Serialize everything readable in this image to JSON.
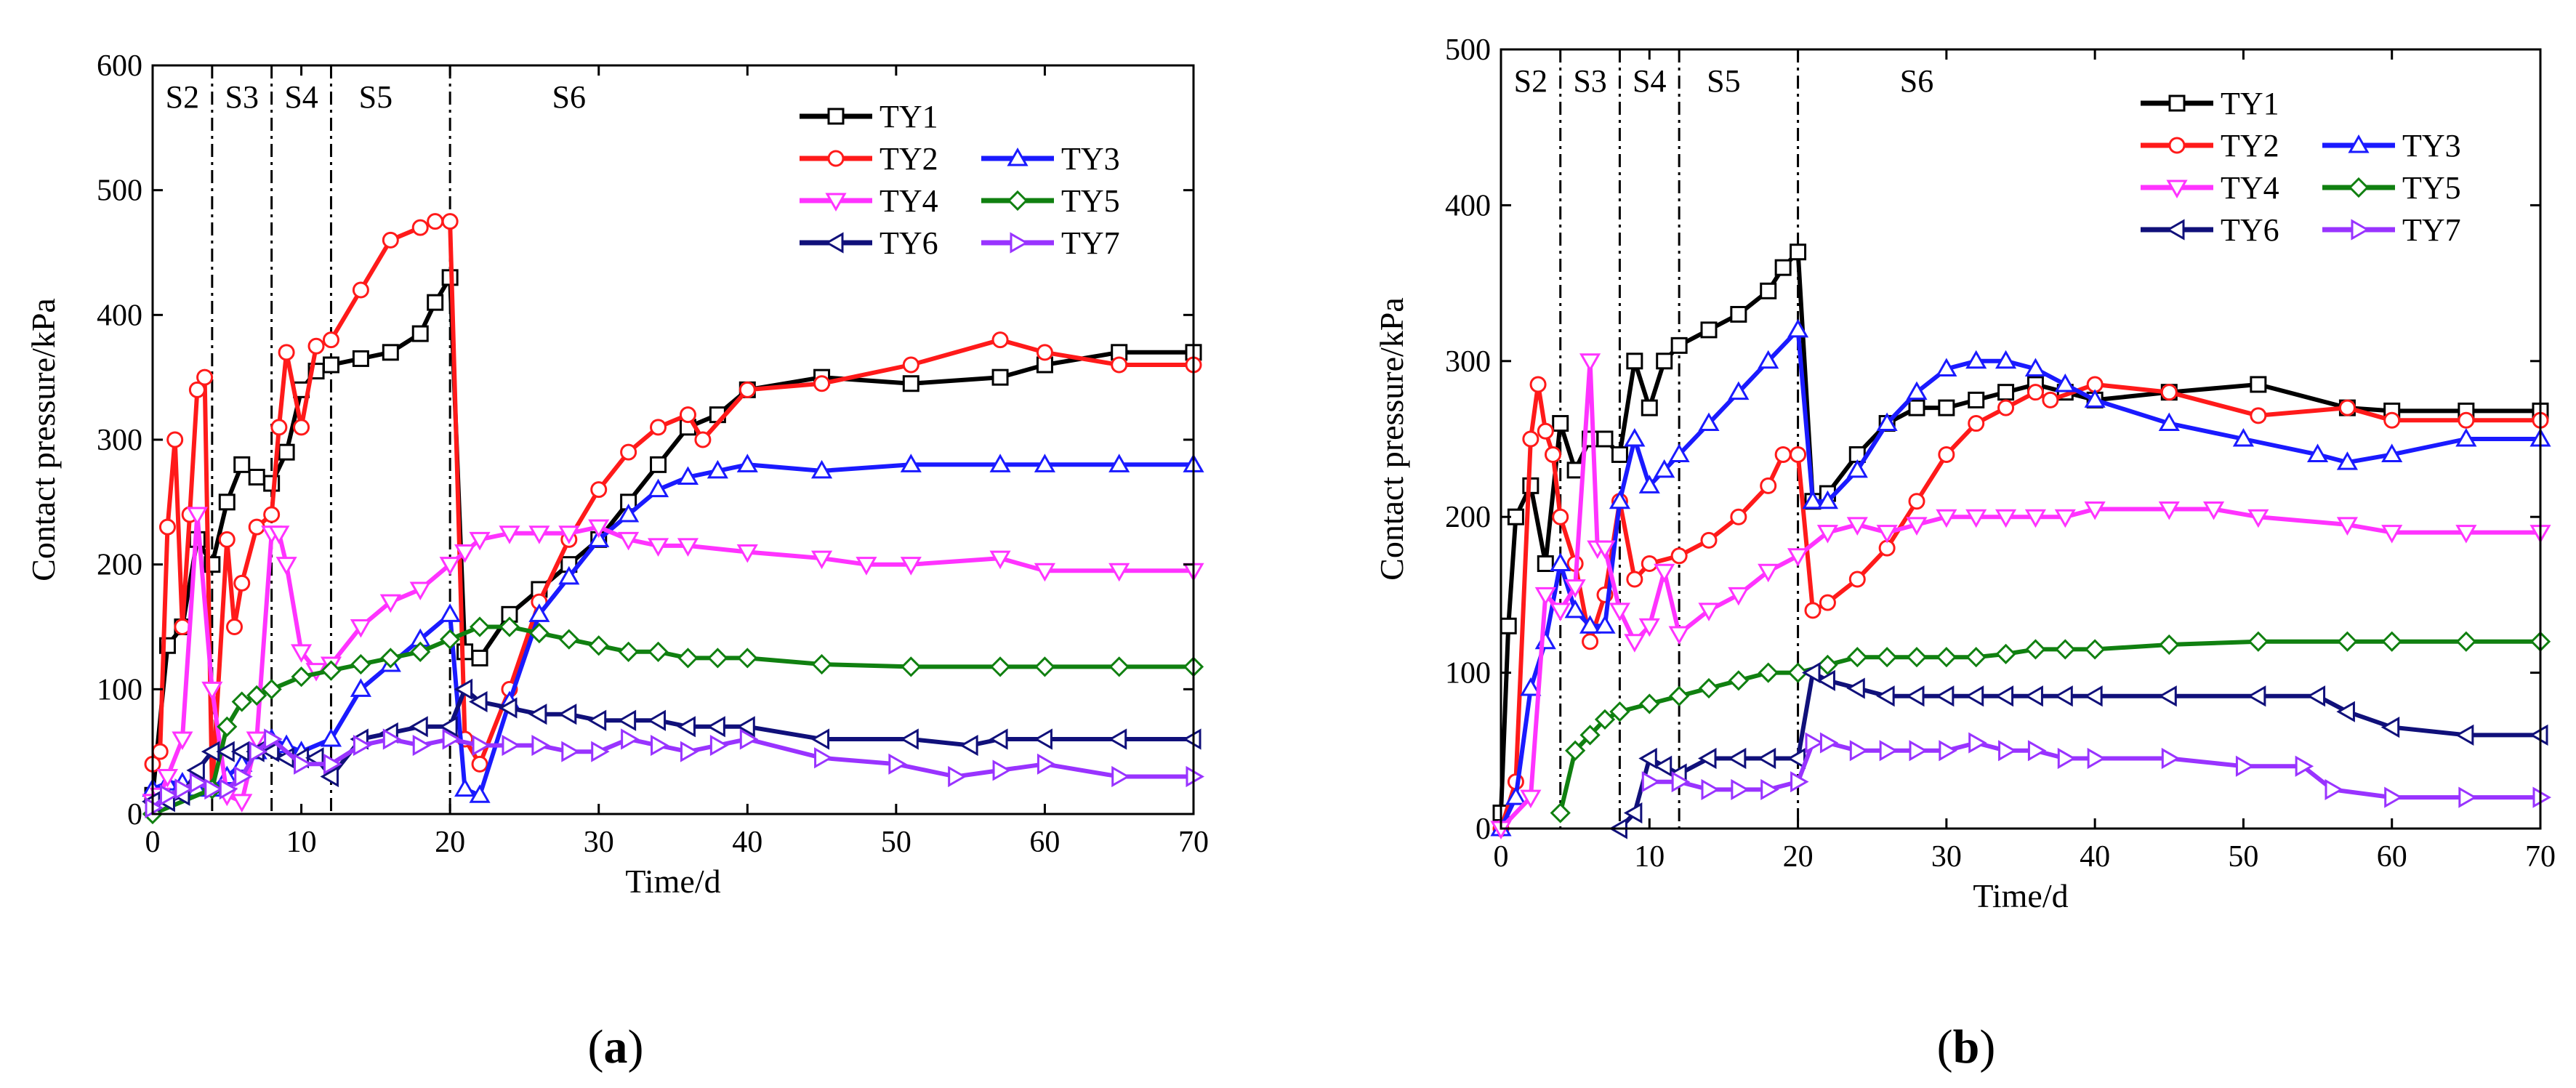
{
  "figure": {
    "panel_a_caption_open": "(",
    "panel_a_caption_letter": "a",
    "panel_a_caption_close": ")",
    "panel_b_caption_open": "(",
    "panel_b_caption_letter": "b",
    "panel_b_caption_close": ")"
  },
  "series_styles": [
    {
      "name": "TY1",
      "color": "#000000",
      "marker": "square"
    },
    {
      "name": "TY2",
      "color": "#ff1a1a",
      "marker": "circle"
    },
    {
      "name": "TY3",
      "color": "#1a1aff",
      "marker": "triangle-up"
    },
    {
      "name": "TY4",
      "color": "#ff33ff",
      "marker": "triangle-down"
    },
    {
      "name": "TY5",
      "color": "#108010",
      "marker": "diamond"
    },
    {
      "name": "TY6",
      "color": "#10107a",
      "marker": "triangle-left"
    },
    {
      "name": "TY7",
      "color": "#9933ff",
      "marker": "triangle-right"
    }
  ],
  "chart_data": [
    {
      "type": "line",
      "panel": "a",
      "title": "",
      "xlabel": "Time/d",
      "ylabel": "Contact pressure/kPa",
      "xlim": [
        0,
        70
      ],
      "ylim": [
        0,
        600
      ],
      "xticks": [
        "0",
        "10",
        "20",
        "30",
        "40",
        "50",
        "60",
        "70"
      ],
      "yticks": [
        "0",
        "100",
        "200",
        "300",
        "400",
        "500",
        "600"
      ],
      "stage_boundaries": [
        4,
        8,
        12,
        20
      ],
      "stages": [
        {
          "label": "S2",
          "x": 2
        },
        {
          "label": "S3",
          "x": 6
        },
        {
          "label": "S4",
          "x": 10
        },
        {
          "label": "S5",
          "x": 15
        },
        {
          "label": "S6",
          "x": 28
        }
      ],
      "legend_position": "top-right",
      "series": [
        {
          "name": "TY1",
          "x": [
            0,
            1,
            2,
            3,
            4,
            5,
            6,
            7,
            8,
            9,
            10,
            11,
            12,
            14,
            16,
            18,
            19,
            20,
            21,
            22,
            24,
            26,
            28,
            30,
            32,
            34,
            36,
            38,
            40,
            45,
            51,
            57,
            60,
            65,
            70
          ],
          "y": [
            15,
            135,
            150,
            220,
            200,
            250,
            280,
            270,
            265,
            290,
            340,
            355,
            360,
            365,
            370,
            385,
            410,
            430,
            130,
            125,
            160,
            180,
            200,
            220,
            250,
            280,
            310,
            320,
            340,
            350,
            345,
            350,
            360,
            370,
            370
          ]
        },
        {
          "name": "TY2",
          "x": [
            0,
            0.5,
            1,
            1.5,
            2,
            2.5,
            3,
            3.5,
            4,
            5,
            5.5,
            6,
            7,
            8,
            8.5,
            9,
            10,
            11,
            12,
            14,
            16,
            18,
            19,
            20,
            21,
            22,
            24,
            26,
            28,
            30,
            32,
            34,
            36,
            37,
            40,
            45,
            51,
            57,
            60,
            65,
            70
          ],
          "y": [
            40,
            50,
            230,
            300,
            150,
            240,
            340,
            350,
            20,
            220,
            150,
            185,
            230,
            240,
            310,
            370,
            310,
            375,
            380,
            420,
            460,
            470,
            475,
            475,
            60,
            40,
            100,
            170,
            220,
            260,
            290,
            310,
            320,
            300,
            340,
            345,
            360,
            380,
            370,
            360,
            360
          ]
        },
        {
          "name": "TY3",
          "x": [
            0,
            1,
            2,
            3,
            4,
            5,
            6,
            7,
            8,
            9,
            10,
            12,
            14,
            16,
            18,
            20,
            21,
            22,
            24,
            26,
            28,
            30,
            32,
            34,
            36,
            38,
            40,
            45,
            51,
            57,
            60,
            65,
            70
          ],
          "y": [
            20,
            25,
            25,
            20,
            20,
            30,
            40,
            50,
            60,
            55,
            50,
            60,
            100,
            120,
            140,
            160,
            20,
            15,
            90,
            160,
            190,
            220,
            240,
            260,
            270,
            275,
            280,
            275,
            280,
            280,
            280,
            280,
            280
          ]
        },
        {
          "name": "TY4",
          "x": [
            0,
            0.5,
            1,
            2,
            3,
            4,
            5,
            6,
            7,
            8,
            8.5,
            9,
            10,
            11,
            12,
            14,
            16,
            18,
            20,
            21,
            22,
            24,
            26,
            28,
            30,
            32,
            34,
            36,
            40,
            45,
            48,
            51,
            57,
            60,
            65,
            70
          ],
          "y": [
            10,
            15,
            30,
            60,
            240,
            100,
            15,
            10,
            60,
            225,
            225,
            200,
            130,
            115,
            120,
            150,
            170,
            180,
            200,
            210,
            220,
            225,
            225,
            225,
            230,
            220,
            215,
            215,
            210,
            205,
            200,
            200,
            205,
            195,
            195,
            195
          ]
        },
        {
          "name": "TY5",
          "x": [
            0,
            4,
            5,
            6,
            7,
            8,
            10,
            12,
            14,
            16,
            18,
            20,
            22,
            24,
            26,
            28,
            30,
            32,
            34,
            36,
            38,
            40,
            45,
            51,
            57,
            60,
            65,
            70
          ],
          "y": [
            0,
            20,
            70,
            90,
            95,
            100,
            110,
            115,
            120,
            125,
            130,
            140,
            150,
            150,
            145,
            140,
            135,
            130,
            130,
            125,
            125,
            125,
            120,
            118,
            118,
            118,
            118,
            118
          ]
        },
        {
          "name": "TY6",
          "x": [
            0,
            1,
            2,
            3,
            4,
            5,
            6,
            7,
            8,
            9,
            10,
            11,
            12,
            14,
            16,
            18,
            20,
            21,
            22,
            24,
            26,
            28,
            30,
            32,
            34,
            36,
            38,
            40,
            45,
            51,
            55,
            57,
            60,
            65,
            70
          ],
          "y": [
            10,
            10,
            15,
            35,
            50,
            50,
            50,
            50,
            50,
            45,
            45,
            45,
            30,
            60,
            65,
            70,
            70,
            100,
            90,
            85,
            80,
            80,
            75,
            75,
            75,
            70,
            70,
            70,
            60,
            60,
            55,
            60,
            60,
            60,
            60
          ]
        },
        {
          "name": "TY7",
          "x": [
            0,
            1,
            2,
            3,
            4,
            5,
            6,
            7,
            8,
            10,
            12,
            14,
            16,
            18,
            20,
            22,
            24,
            26,
            28,
            30,
            32,
            34,
            36,
            38,
            40,
            45,
            50,
            54,
            57,
            60,
            65,
            70
          ],
          "y": [
            5,
            15,
            20,
            25,
            20,
            20,
            30,
            50,
            60,
            40,
            40,
            55,
            60,
            55,
            60,
            55,
            55,
            55,
            50,
            50,
            60,
            55,
            50,
            55,
            60,
            45,
            40,
            30,
            35,
            40,
            30,
            30
          ]
        }
      ]
    },
    {
      "type": "line",
      "panel": "b",
      "title": "",
      "xlabel": "Time/d",
      "ylabel": "Contact pressure/kPa",
      "xlim": [
        0,
        70
      ],
      "ylim": [
        0,
        500
      ],
      "xticks": [
        "0",
        "10",
        "20",
        "30",
        "40",
        "50",
        "60",
        "70"
      ],
      "yticks": [
        "0",
        "100",
        "200",
        "300",
        "400",
        "500"
      ],
      "stage_boundaries": [
        4,
        8,
        12,
        20
      ],
      "stages": [
        {
          "label": "S2",
          "x": 2
        },
        {
          "label": "S3",
          "x": 6
        },
        {
          "label": "S4",
          "x": 10
        },
        {
          "label": "S5",
          "x": 15
        },
        {
          "label": "S6",
          "x": 28
        }
      ],
      "legend_position": "top-right",
      "series": [
        {
          "name": "TY1",
          "x": [
            0,
            0.5,
            1,
            2,
            3,
            4,
            5,
            6,
            7,
            8,
            9,
            10,
            11,
            12,
            14,
            16,
            18,
            19,
            20,
            21,
            22,
            24,
            26,
            28,
            30,
            32,
            34,
            36,
            38,
            40,
            45,
            51,
            57,
            60,
            65,
            70
          ],
          "y": [
            10,
            130,
            200,
            220,
            170,
            260,
            230,
            250,
            250,
            240,
            300,
            270,
            300,
            310,
            320,
            330,
            345,
            360,
            370,
            210,
            215,
            240,
            260,
            270,
            270,
            275,
            280,
            285,
            280,
            275,
            280,
            285,
            270,
            268,
            268,
            268
          ]
        },
        {
          "name": "TY2",
          "x": [
            0,
            1,
            2,
            2.5,
            3,
            3.5,
            4,
            5,
            6,
            7,
            8,
            9,
            10,
            12,
            14,
            16,
            18,
            19,
            20,
            21,
            22,
            24,
            26,
            28,
            30,
            32,
            34,
            36,
            37,
            40,
            45,
            51,
            57,
            60,
            65,
            70
          ],
          "y": [
            0,
            30,
            250,
            285,
            255,
            240,
            200,
            170,
            120,
            150,
            210,
            160,
            170,
            175,
            185,
            200,
            220,
            240,
            240,
            140,
            145,
            160,
            180,
            210,
            240,
            260,
            270,
            280,
            275,
            285,
            280,
            265,
            270,
            262,
            262,
            262
          ]
        },
        {
          "name": "TY3",
          "x": [
            0,
            1,
            2,
            3,
            4,
            5,
            6,
            7,
            8,
            9,
            10,
            11,
            12,
            14,
            16,
            18,
            20,
            21,
            22,
            24,
            26,
            28,
            30,
            32,
            34,
            36,
            38,
            40,
            45,
            50,
            55,
            57,
            60,
            65,
            70
          ],
          "y": [
            0,
            20,
            90,
            120,
            170,
            140,
            130,
            130,
            210,
            250,
            220,
            230,
            240,
            260,
            280,
            300,
            320,
            210,
            210,
            230,
            260,
            280,
            295,
            300,
            300,
            295,
            285,
            275,
            260,
            250,
            240,
            235,
            240,
            250,
            250
          ]
        },
        {
          "name": "TY4",
          "x": [
            0,
            2,
            3,
            4,
            5,
            6,
            6.5,
            7,
            8,
            9,
            10,
            11,
            12,
            14,
            16,
            18,
            20,
            22,
            24,
            26,
            28,
            30,
            32,
            34,
            36,
            38,
            40,
            45,
            48,
            51,
            57,
            60,
            65,
            70
          ],
          "y": [
            0,
            20,
            150,
            140,
            155,
            300,
            180,
            180,
            140,
            120,
            130,
            165,
            125,
            140,
            150,
            165,
            175,
            190,
            195,
            190,
            195,
            200,
            200,
            200,
            200,
            200,
            205,
            205,
            205,
            200,
            195,
            190,
            190,
            190
          ]
        },
        {
          "name": "TY5",
          "x": [
            4,
            5,
            6,
            7,
            8,
            10,
            12,
            14,
            16,
            18,
            20,
            22,
            24,
            26,
            28,
            30,
            32,
            34,
            36,
            38,
            40,
            45,
            51,
            57,
            60,
            65,
            70
          ],
          "y": [
            10,
            50,
            60,
            70,
            75,
            80,
            85,
            90,
            95,
            100,
            100,
            105,
            110,
            110,
            110,
            110,
            110,
            112,
            115,
            115,
            115,
            118,
            120,
            120,
            120,
            120,
            120
          ]
        },
        {
          "name": "TY6",
          "x": [
            8,
            9,
            10,
            11,
            12,
            14,
            16,
            18,
            20,
            21,
            22,
            24,
            26,
            28,
            30,
            32,
            34,
            36,
            38,
            40,
            45,
            51,
            55,
            57,
            60,
            65,
            70
          ],
          "y": [
            0,
            10,
            45,
            40,
            35,
            45,
            45,
            45,
            45,
            100,
            95,
            90,
            85,
            85,
            85,
            85,
            85,
            85,
            85,
            85,
            85,
            85,
            85,
            75,
            65,
            60,
            60
          ]
        },
        {
          "name": "TY7",
          "x": [
            10,
            12,
            14,
            16,
            18,
            20,
            21,
            22,
            24,
            26,
            28,
            30,
            32,
            34,
            36,
            38,
            40,
            45,
            50,
            54,
            56,
            60,
            65,
            70
          ],
          "y": [
            30,
            30,
            25,
            25,
            25,
            30,
            55,
            55,
            50,
            50,
            50,
            50,
            55,
            50,
            50,
            45,
            45,
            45,
            40,
            40,
            25,
            20,
            20,
            20
          ]
        }
      ]
    }
  ]
}
